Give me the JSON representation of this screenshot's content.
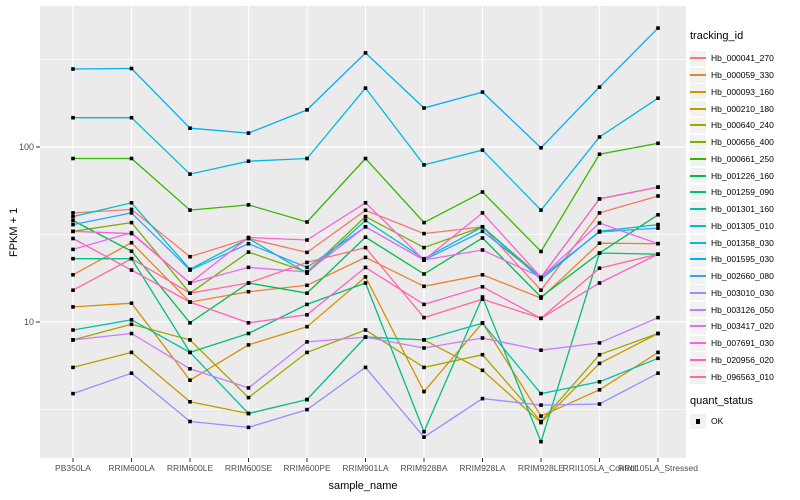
{
  "figure": {
    "y_axis_title": "FPKM + 1",
    "x_axis_title": "sample_name",
    "legend": {
      "tracking_title": "tracking_id",
      "quant_title": "quant_status",
      "quant_items": [
        {
          "label": "OK",
          "marker": "black-square"
        }
      ]
    },
    "style": {
      "panel_background": "#EBEBEB",
      "gridline_color": "#FFFFFF",
      "tick_label_color": "#4D4D4D",
      "axis_title_color": "#000000",
      "point_color": "#000000",
      "legend_key_background": "#F2F2F2"
    }
  },
  "chart_data": {
    "type": "line",
    "title": "",
    "xlabel": "sample_name",
    "ylabel": "FPKM + 1",
    "y_scale": "log10",
    "y_ticks": [
      100,
      10
    ],
    "y_minor_gridlines": [
      3.1623,
      31.623,
      316.23
    ],
    "ylim_approx": [
      1.7,
      650
    ],
    "legend_position": "right",
    "grid": true,
    "point_shape": "square",
    "categories": [
      "PB350LA",
      "RRIM600LA",
      "RRIM600LE",
      "RRIM600SE",
      "RRIM600PE",
      "RRIM901LA",
      "RRIM928BA",
      "RRIM928LA",
      "RRIM928LE",
      "RRII105LA_Control",
      "RRII105LA_Stressed"
    ],
    "series": [
      {
        "name": "Hb_000041_270",
        "color": "#F8766D",
        "quant_status": "OK",
        "values": [
          42,
          44,
          23.6,
          30,
          25,
          43.5,
          32,
          35,
          15.2,
          42,
          52.5
        ]
      },
      {
        "name": "Hb_000059_330",
        "color": "#EA8331",
        "quant_status": "OK",
        "values": [
          18.6,
          28.4,
          13,
          14.9,
          16.2,
          23.4,
          16,
          18.6,
          13.7,
          28.2,
          28
        ]
      },
      {
        "name": "Hb_000093_160",
        "color": "#D89000",
        "quant_status": "OK",
        "values": [
          12.2,
          12.8,
          4.65,
          7.4,
          9.4,
          18.1,
          4.0,
          9.9,
          2.9,
          4.1,
          6.7
        ]
      },
      {
        "name": "Hb_000210_180",
        "color": "#C09B00",
        "quant_status": "OK",
        "values": [
          5.5,
          6.7,
          3.5,
          3.0,
          3.6,
          8.2,
          7.9,
          5.3,
          2.66,
          5.8,
          8.6
        ]
      },
      {
        "name": "Hb_000640_240",
        "color": "#A3A500",
        "quant_status": "OK",
        "values": [
          7.9,
          9.7,
          7.9,
          3.7,
          6.7,
          9.0,
          5.5,
          6.5,
          2.7,
          6.5,
          8.6
        ]
      },
      {
        "name": "Hb_000656_400",
        "color": "#7CAE00",
        "quant_status": "OK",
        "values": [
          33,
          37,
          14.6,
          25.1,
          19.3,
          40,
          26.6,
          35,
          18,
          50.5,
          59
        ]
      },
      {
        "name": "Hb_000661_250",
        "color": "#39B600",
        "quant_status": "OK",
        "values": [
          86,
          86,
          43.6,
          46.7,
          37.3,
          86,
          37,
          55.3,
          25.3,
          91,
          105
        ]
      },
      {
        "name": "Hb_001226_160",
        "color": "#00BB4E",
        "quant_status": "OK",
        "values": [
          38,
          25.4,
          9.9,
          16.7,
          14.6,
          30.5,
          18.8,
          30.2,
          13.9,
          24.8,
          41
        ]
      },
      {
        "name": "Hb_001259_090",
        "color": "#00BF7D",
        "quant_status": "OK",
        "values": [
          23,
          23,
          6.7,
          8.6,
          12.6,
          16.7,
          2.36,
          13.9,
          2.07,
          24.8,
          24.4
        ]
      },
      {
        "name": "Hb_001301_160",
        "color": "#00C1A3",
        "quant_status": "OK",
        "values": [
          9.0,
          10.3,
          6.7,
          3.0,
          3.6,
          8.2,
          7.9,
          9.85,
          3.9,
          4.55,
          6.2
        ]
      },
      {
        "name": "Hb_001305_010",
        "color": "#00BFC4",
        "quant_status": "OK",
        "values": [
          40,
          48,
          20,
          30,
          19,
          38,
          23,
          35,
          17.5,
          33,
          36
        ]
      },
      {
        "name": "Hb_001358_030",
        "color": "#00BAE0",
        "quant_status": "OK",
        "values": [
          147,
          147,
          70,
          83,
          86,
          217,
          79,
          96,
          43.6,
          114,
          190
        ]
      },
      {
        "name": "Hb_001595_030",
        "color": "#00B0F6",
        "quant_status": "OK",
        "values": [
          279,
          281,
          128,
          120,
          163,
          345,
          167,
          206,
          99,
          220,
          478
        ]
      },
      {
        "name": "Hb_002660_080",
        "color": "#35A2FF",
        "quant_status": "OK",
        "values": [
          36,
          42,
          19.8,
          28,
          20.5,
          35,
          22.6,
          33,
          18,
          32.7,
          34.4
        ]
      },
      {
        "name": "Hb_003010_030",
        "color": "#9590FF",
        "quant_status": "OK",
        "values": [
          3.9,
          5.1,
          2.7,
          2.5,
          3.16,
          5.5,
          2.2,
          3.65,
          3.35,
          3.4,
          5.1
        ]
      },
      {
        "name": "Hb_003126_050",
        "color": "#C77CFF",
        "quant_status": "OK",
        "values": [
          7.9,
          8.6,
          5.4,
          4.2,
          7.7,
          8.2,
          7.1,
          8.1,
          6.9,
          7.6,
          10.6
        ]
      },
      {
        "name": "Hb_003417_020",
        "color": "#E76BF3",
        "quant_status": "OK",
        "values": [
          26,
          32.4,
          16.7,
          20.5,
          19.3,
          35,
          22.6,
          25.8,
          18,
          36.8,
          28
        ]
      },
      {
        "name": "Hb_007691_030",
        "color": "#FA62DB",
        "quant_status": "OK",
        "values": [
          33,
          32,
          16.7,
          30.4,
          29.4,
          48,
          22.6,
          42,
          18,
          50.5,
          59
        ]
      },
      {
        "name": "Hb_020956_020",
        "color": "#FF62BC",
        "quant_status": "OK",
        "values": [
          30,
          19.8,
          13,
          9.9,
          11,
          20.5,
          12.6,
          15.9,
          10.5,
          16.7,
          24.4
        ]
      },
      {
        "name": "Hb_096563_010",
        "color": "#FF6A98",
        "quant_status": "OK",
        "values": [
          15.2,
          23,
          14.6,
          16.7,
          21.9,
          26.6,
          10.6,
          13.5,
          10.5,
          20.3,
          24.4
        ]
      }
    ]
  }
}
